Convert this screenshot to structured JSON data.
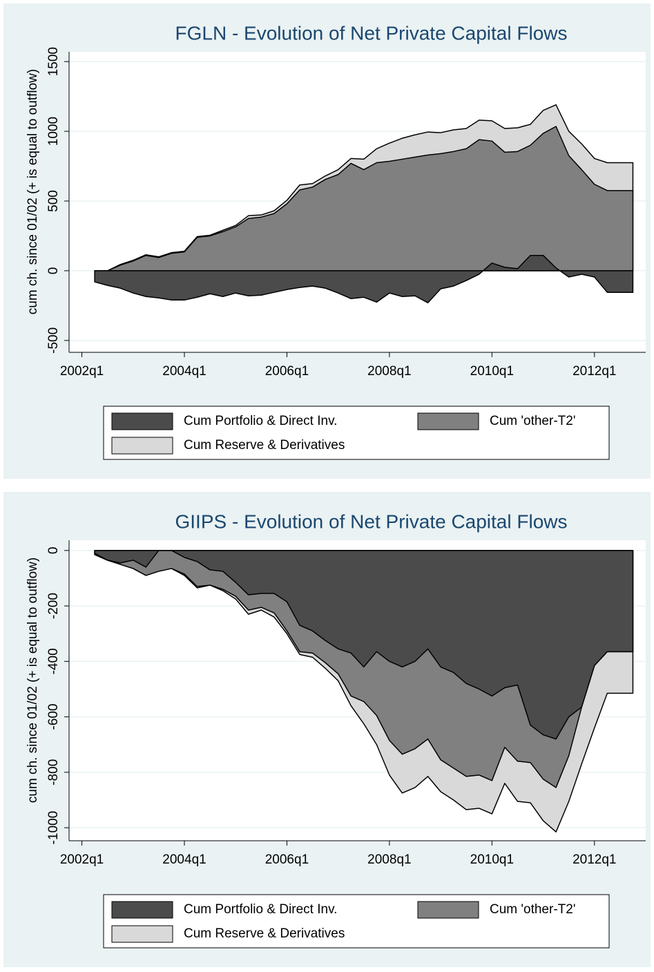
{
  "chart_data": [
    {
      "type": "area",
      "title": "FGLN - Evolution of Net Private Capital Flows",
      "y_label": "cum ch. since 01/02 (+ is equal to outflow)",
      "x": [
        169,
        170,
        171,
        172,
        173,
        174,
        175,
        176,
        177,
        178,
        179,
        180,
        181,
        182,
        183,
        184,
        185,
        186,
        187,
        188,
        189,
        190,
        191,
        192,
        193,
        194,
        195,
        196,
        197,
        198,
        199,
        200,
        201,
        202,
        203,
        204,
        205,
        206,
        207,
        208,
        209,
        210,
        211
      ],
      "xlim": [
        167,
        212
      ],
      "xticks": [
        {
          "value": 168,
          "label": "2002q1"
        },
        {
          "value": 176,
          "label": "2004q1"
        },
        {
          "value": 184,
          "label": "2006q1"
        },
        {
          "value": 192,
          "label": "2008q1"
        },
        {
          "value": 200,
          "label": "2010q1"
        },
        {
          "value": 208,
          "label": "2012q1"
        }
      ],
      "ylim": [
        -585,
        1570
      ],
      "yticks": [
        -500,
        0,
        500,
        1000,
        1500
      ],
      "grid": true,
      "legend": "bottom",
      "series": [
        {
          "name": "Cum Portfolio & Direct Inv.",
          "color": "#4b4b4b",
          "values": [
            -80,
            -105,
            -125,
            -160,
            -185,
            -195,
            -210,
            -210,
            -190,
            -165,
            -185,
            -160,
            -180,
            -175,
            -155,
            -135,
            -120,
            -110,
            -125,
            -160,
            -200,
            -190,
            -225,
            -160,
            -185,
            -180,
            -230,
            -130,
            -110,
            -70,
            -25,
            55,
            25,
            15,
            110,
            110,
            20,
            -45,
            -25,
            -45,
            -155,
            -155,
            -155
          ]
        },
        {
          "name": "Cum 'other-T2'",
          "color": "#808080",
          "values": [
            0,
            0,
            40,
            70,
            110,
            95,
            125,
            135,
            240,
            250,
            280,
            315,
            375,
            385,
            410,
            480,
            580,
            600,
            655,
            690,
            770,
            725,
            775,
            785,
            800,
            815,
            830,
            840,
            855,
            875,
            940,
            930,
            850,
            855,
            900,
            985,
            1035,
            825,
            725,
            620,
            575,
            575,
            575
          ]
        },
        {
          "name": "Cum Reserve & Derivatives",
          "color": "#d9d9d9",
          "values": [
            0,
            0,
            45,
            75,
            115,
            100,
            130,
            140,
            245,
            255,
            290,
            325,
            395,
            400,
            430,
            505,
            615,
            625,
            680,
            725,
            805,
            800,
            875,
            915,
            950,
            975,
            995,
            990,
            1010,
            1020,
            1080,
            1075,
            1020,
            1025,
            1050,
            1150,
            1190,
            1000,
            910,
            805,
            775,
            775,
            775
          ]
        }
      ]
    },
    {
      "type": "area",
      "title": "GIIPS - Evolution of Net Private Capital Flows",
      "y_label": "cum ch. since 01/02 (+ is equal to outflow)",
      "x": [
        169,
        170,
        171,
        172,
        173,
        174,
        175,
        176,
        177,
        178,
        179,
        180,
        181,
        182,
        183,
        184,
        185,
        186,
        187,
        188,
        189,
        190,
        191,
        192,
        193,
        194,
        195,
        196,
        197,
        198,
        199,
        200,
        201,
        202,
        203,
        204,
        205,
        206,
        207,
        208,
        209,
        210,
        211
      ],
      "xlim": [
        167,
        212
      ],
      "xticks": [
        {
          "value": 168,
          "label": "2002q1"
        },
        {
          "value": 176,
          "label": "2004q1"
        },
        {
          "value": 184,
          "label": "2006q1"
        },
        {
          "value": 192,
          "label": "2008q1"
        },
        {
          "value": 200,
          "label": "2010q1"
        },
        {
          "value": 208,
          "label": "2012q1"
        }
      ],
      "ylim": [
        -1047,
        37
      ],
      "yticks": [
        -1000,
        -800,
        -600,
        -400,
        -200,
        0
      ],
      "grid": true,
      "legend": "bottom",
      "series": [
        {
          "name": "Cum Portfolio & Direct Inv.",
          "color": "#4b4b4b",
          "values": [
            -10,
            -35,
            -45,
            -35,
            -60,
            0,
            0,
            -25,
            -40,
            -70,
            -75,
            -115,
            -160,
            -155,
            -155,
            -185,
            -270,
            -290,
            -325,
            -355,
            -370,
            -420,
            -365,
            -400,
            -420,
            -400,
            -355,
            -420,
            -440,
            -480,
            -500,
            -525,
            -495,
            -485,
            -630,
            -665,
            -680,
            -600,
            -565,
            -415,
            -365,
            -365,
            -365
          ]
        },
        {
          "name": "Cum 'other-T2'",
          "color": "#808080",
          "values": [
            -15,
            -35,
            -50,
            -65,
            -90,
            -75,
            -65,
            -85,
            -130,
            -125,
            -140,
            -165,
            -215,
            -205,
            -225,
            -290,
            -365,
            -370,
            -405,
            -445,
            -525,
            -545,
            -595,
            -685,
            -735,
            -715,
            -680,
            -755,
            -785,
            -815,
            -810,
            -830,
            -710,
            -760,
            -765,
            -825,
            -855,
            -740,
            -565,
            -415,
            -365,
            -365,
            -365
          ]
        },
        {
          "name": "Cum Reserve & Derivatives",
          "color": "#d9d9d9",
          "values": [
            -15,
            -35,
            -50,
            -65,
            -90,
            -75,
            -65,
            -90,
            -135,
            -125,
            -145,
            -175,
            -230,
            -215,
            -240,
            -300,
            -375,
            -385,
            -425,
            -470,
            -560,
            -625,
            -700,
            -810,
            -875,
            -855,
            -815,
            -870,
            -900,
            -935,
            -930,
            -950,
            -840,
            -905,
            -910,
            -975,
            -1015,
            -905,
            -770,
            -640,
            -515,
            -515,
            -515
          ]
        }
      ]
    }
  ]
}
